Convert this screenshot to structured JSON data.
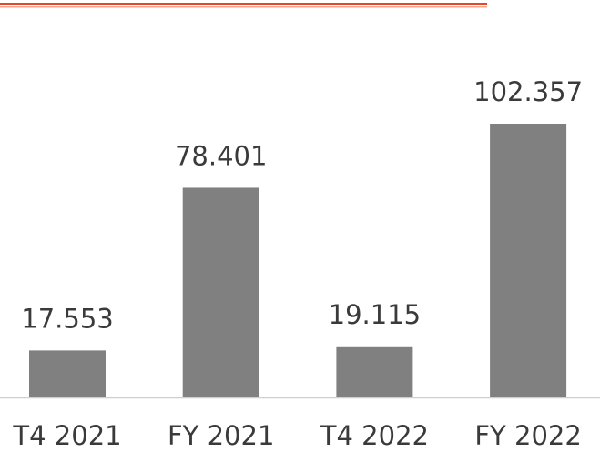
{
  "chart_data": {
    "type": "bar",
    "categories": [
      "T4 2021",
      "FY 2021",
      "T4 2022",
      "FY 2022"
    ],
    "values": [
      17.553,
      78.401,
      19.115,
      102.357
    ],
    "color": "#808080"
  }
}
